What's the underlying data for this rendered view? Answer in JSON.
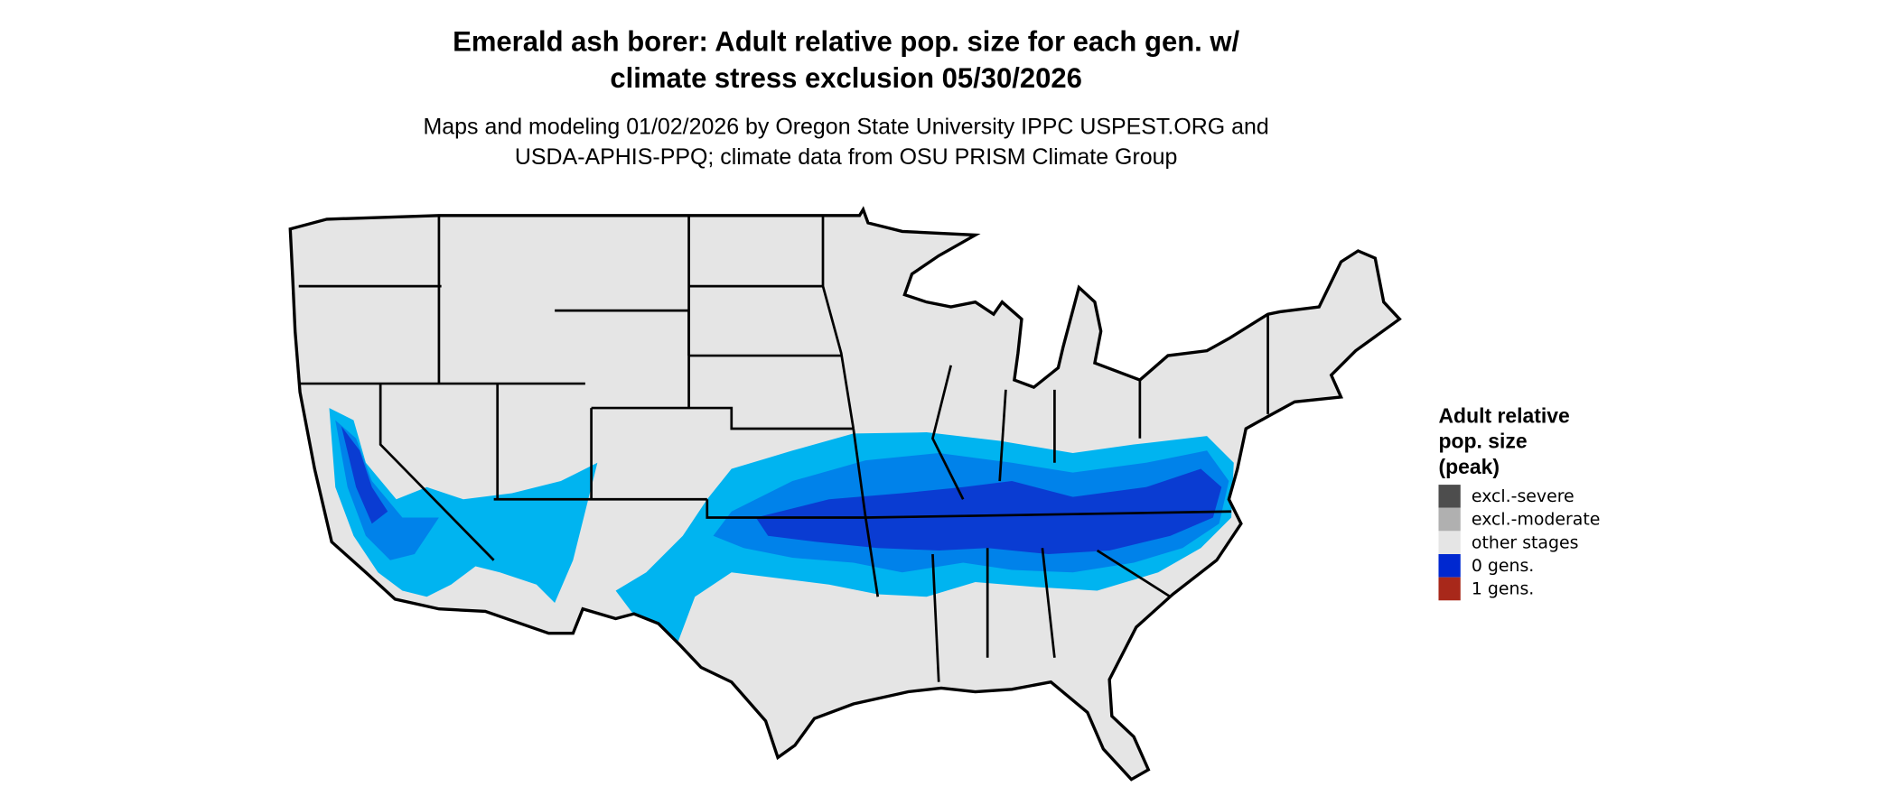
{
  "title": {
    "line1": "Emerald ash borer: Adult relative pop. size for each gen. w/",
    "line2": "climate stress exclusion 05/30/2026"
  },
  "subtitle": {
    "line1": "Maps and modeling 01/02/2026 by Oregon State University IPPC USPEST.ORG and",
    "line2": "USDA-APHIS-PPQ; climate data from OSU PRISM Climate Group"
  },
  "legend": {
    "title_lines": [
      "Adult relative",
      "pop. size",
      "(peak)"
    ],
    "items": [
      {
        "label": "excl.-severe",
        "color": "#4d4d4d"
      },
      {
        "label": "excl.-moderate",
        "color": "#b0b0b0"
      },
      {
        "label": "other stages",
        "color": "#e5e5e5"
      },
      {
        "label": "0 gens.",
        "color": "#0028d0"
      },
      {
        "label": "1 gens.",
        "color": "#a8281a"
      }
    ]
  },
  "map": {
    "region": "Conterminous United States",
    "land_color": "#e5e5e5",
    "shade_colors": {
      "light": "#00b4f0",
      "medium": "#0082ea",
      "dark": "#0a3cd2"
    }
  }
}
